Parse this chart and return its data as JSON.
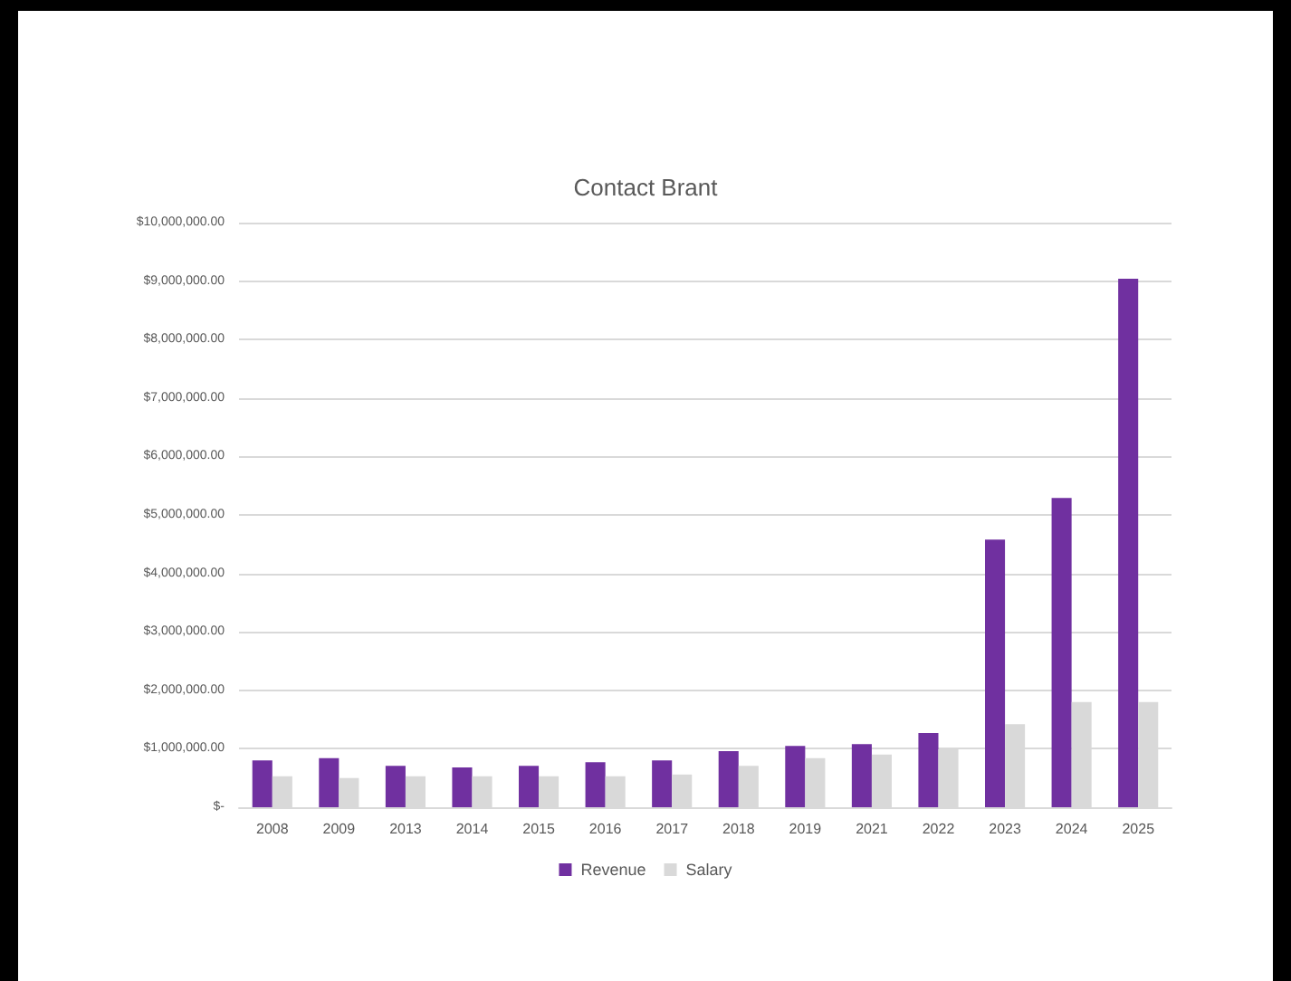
{
  "chart_data": {
    "type": "bar",
    "title": "Contact Brant",
    "categories": [
      "2008",
      "2009",
      "2013",
      "2014",
      "2015",
      "2016",
      "2017",
      "2018",
      "2019",
      "2021",
      "2022",
      "2023",
      "2024",
      "2025"
    ],
    "series": [
      {
        "name": "Revenue",
        "color": "#7030a0",
        "values": [
          800000,
          840000,
          710000,
          680000,
          710000,
          770000,
          800000,
          960000,
          1050000,
          1080000,
          1270000,
          4580000,
          5290000,
          9040000
        ]
      },
      {
        "name": "Salary",
        "color": "#d9d9d9",
        "values": [
          530000,
          500000,
          530000,
          530000,
          530000,
          530000,
          560000,
          710000,
          840000,
          900000,
          990000,
          1420000,
          1800000,
          1800000
        ]
      }
    ],
    "ylim": [
      0,
      10000000
    ],
    "yticks": [
      {
        "value": 0,
        "label": "$-"
      },
      {
        "value": 1000000,
        "label": "$1,000,000.00"
      },
      {
        "value": 2000000,
        "label": "$2,000,000.00"
      },
      {
        "value": 3000000,
        "label": "$3,000,000.00"
      },
      {
        "value": 4000000,
        "label": "$4,000,000.00"
      },
      {
        "value": 5000000,
        "label": "$5,000,000.00"
      },
      {
        "value": 6000000,
        "label": "$6,000,000.00"
      },
      {
        "value": 7000000,
        "label": "$7,000,000.00"
      },
      {
        "value": 8000000,
        "label": "$8,000,000.00"
      },
      {
        "value": 9000000,
        "label": "$9,000,000.00"
      },
      {
        "value": 10000000,
        "label": "$10,000,000.00"
      }
    ],
    "grid": "y",
    "legend": "bottom"
  }
}
